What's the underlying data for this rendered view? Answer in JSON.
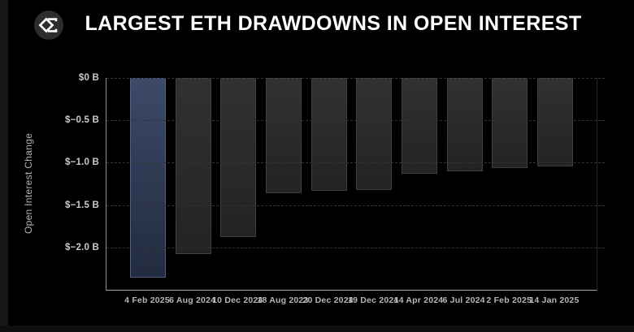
{
  "header": {
    "title": "LARGEST ETH DRAWDOWNS IN OPEN INTEREST",
    "logo_icon": "sigma-logo-icon"
  },
  "colors": {
    "background": "#000000",
    "title_text": "#ffffff",
    "bar_fill": "#2b2b2b",
    "bar_border": "#3f3f3f",
    "highlight_bar_fill": "#33415e",
    "highlight_bar_border": "#51608a",
    "grid": "#333333",
    "axis": "#9a9a9a",
    "tick_text": "#cbcbcb"
  },
  "chart_data": {
    "type": "bar",
    "title": "LARGEST ETH DRAWDOWNS IN OPEN INTEREST",
    "xlabel": "",
    "ylabel": "Open Interest Change",
    "unit": "$ billions",
    "categories": [
      "4 Feb 2025",
      "6 Aug 2024",
      "10 Dec 2024",
      "18 Aug 2023",
      "20 Dec 2024",
      "19 Dec 2024",
      "14 Apr 2024",
      "6 Jul 2024",
      "2 Feb 2025",
      "14 Jan 2025"
    ],
    "values": [
      -2.36,
      -2.08,
      -1.88,
      -1.36,
      -1.33,
      -1.32,
      -1.13,
      -1.1,
      -1.06,
      -1.04
    ],
    "highlight_index": 0,
    "ylim": [
      -2.5,
      0
    ],
    "yticks": [
      {
        "value": 0,
        "label": "$0 B"
      },
      {
        "value": -0.5,
        "label": "$−0.5 B"
      },
      {
        "value": -1.0,
        "label": "$−1.0 B"
      },
      {
        "value": -1.5,
        "label": "$−1.5 B"
      },
      {
        "value": -2.0,
        "label": "$−2.0 B"
      }
    ],
    "grid": true,
    "legend": false
  }
}
